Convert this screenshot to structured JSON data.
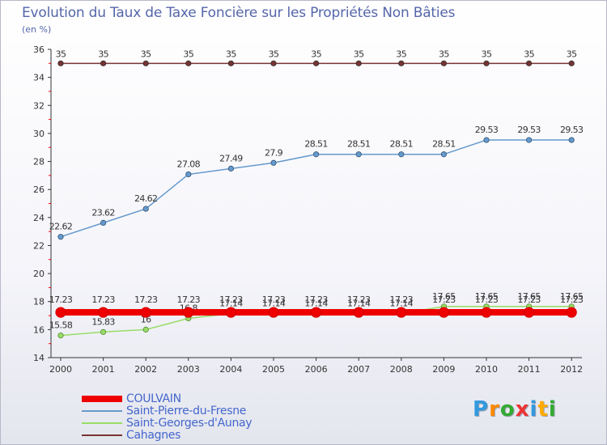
{
  "header": {
    "title": "Evolution du Taux de Taxe Foncière sur les Propriétés Non Bâties",
    "unit": "(en %)"
  },
  "chart_data": {
    "type": "line",
    "title": "Evolution du Taux de Taxe Foncière sur les Propriétés Non Bâties",
    "ylabel": "(en %)",
    "xlabel": "",
    "ylim": [
      14,
      36
    ],
    "yticks": [
      14,
      16,
      18,
      20,
      22,
      24,
      26,
      28,
      30,
      32,
      34,
      36
    ],
    "categories": [
      "2000",
      "2001",
      "2002",
      "2003",
      "2004",
      "2005",
      "2006",
      "2007",
      "2008",
      "2009",
      "2010",
      "2011",
      "2012"
    ],
    "series": [
      {
        "name": "Cahagnes",
        "color": "#773333",
        "values": [
          35,
          35,
          35,
          35,
          35,
          35,
          35,
          35,
          35,
          35,
          35,
          35,
          35
        ],
        "labels": [
          "35",
          "35",
          "35",
          "35",
          "35",
          "35",
          "35",
          "35",
          "35",
          "35",
          "35",
          "35",
          "35"
        ]
      },
      {
        "name": "Saint-Pierre-du-Fresne",
        "color": "#6699cc",
        "values": [
          22.62,
          23.62,
          24.62,
          27.08,
          27.49,
          27.9,
          28.51,
          28.51,
          28.51,
          28.51,
          29.53,
          29.53,
          29.53
        ],
        "labels": [
          "22.62",
          "23.62",
          "24.62",
          "27.08",
          "27.49",
          "27.9",
          "28.51",
          "28.51",
          "28.51",
          "28.51",
          "29.53",
          "29.53",
          "29.53"
        ]
      },
      {
        "name": "Saint-Georges-d'Aunay",
        "color": "#99dd66",
        "values": [
          15.58,
          15.83,
          16,
          16.8,
          17.14,
          17.14,
          17.14,
          17.14,
          17.14,
          17.65,
          17.65,
          17.65,
          17.65
        ],
        "labels": [
          "15.58",
          "15.83",
          "16",
          "16.8",
          "17.14",
          "17.14",
          "17.14",
          "17.14",
          "17.14",
          "17.65",
          "17.65",
          "17.65",
          "17.65"
        ]
      },
      {
        "name": "COULVAIN",
        "color": "#ee0000",
        "values": [
          17.23,
          17.23,
          17.23,
          17.23,
          17.23,
          17.23,
          17.23,
          17.23,
          17.23,
          17.23,
          17.23,
          17.23,
          17.23
        ],
        "labels": [
          "17.23",
          "17.23",
          "17.23",
          "17.23",
          "17.23",
          "17.23",
          "17.23",
          "17.23",
          "17.23",
          "17.23",
          "17.23",
          "17.23",
          "17.23"
        ]
      }
    ],
    "legend_order": [
      "COULVAIN",
      "Saint-Pierre-du-Fresne",
      "Saint-Georges-d'Aunay",
      "Cahagnes"
    ],
    "legend_position": "bottom-left",
    "grid": false
  },
  "legend": {
    "items": [
      {
        "label": "COULVAIN",
        "color": "#ee0000"
      },
      {
        "label": "Saint-Pierre-du-Fresne",
        "color": "#6699cc"
      },
      {
        "label": "Saint-Georges-d'Aunay",
        "color": "#99dd66"
      },
      {
        "label": "Cahagnes",
        "color": "#773333"
      }
    ]
  },
  "brand": {
    "letters": [
      "P",
      "r",
      "o",
      "x",
      "i",
      "t",
      "i"
    ],
    "colors": [
      "#3399dd",
      "#ff8800",
      "#33aa33",
      "#ee3333",
      "#3399dd",
      "#ffaa00",
      "#33aa33"
    ]
  }
}
